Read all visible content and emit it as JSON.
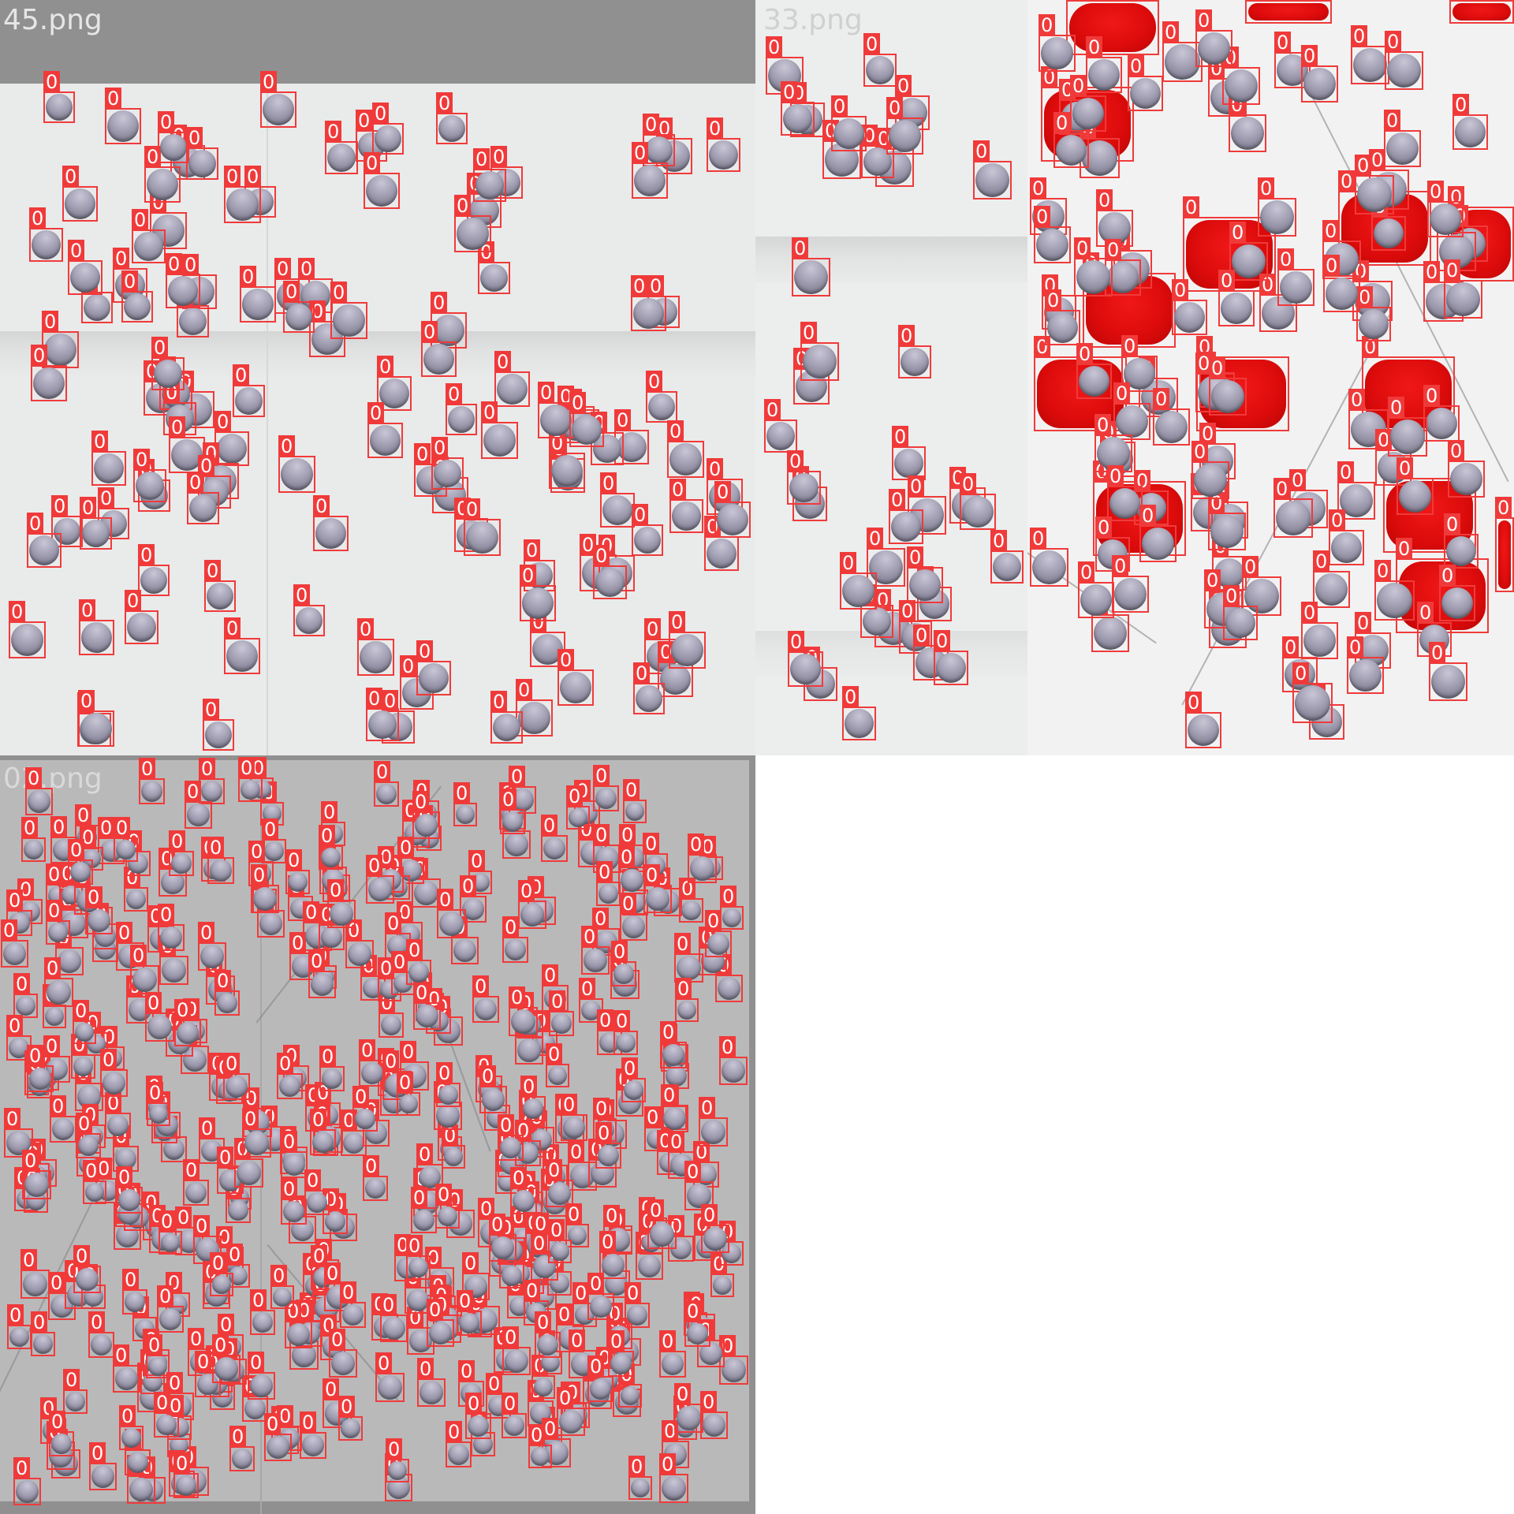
{
  "tiles": [
    {
      "label": "45.png"
    },
    {
      "label": "33.png"
    },
    {
      "label": ""
    },
    {
      "label": "02.png"
    }
  ],
  "class_label": "0",
  "colors": {
    "box": "#f03a3a",
    "blob": "#dc0b0b",
    "droplet": "#a29fb3",
    "plate": "#e9eaea",
    "frame": "#909090"
  }
}
